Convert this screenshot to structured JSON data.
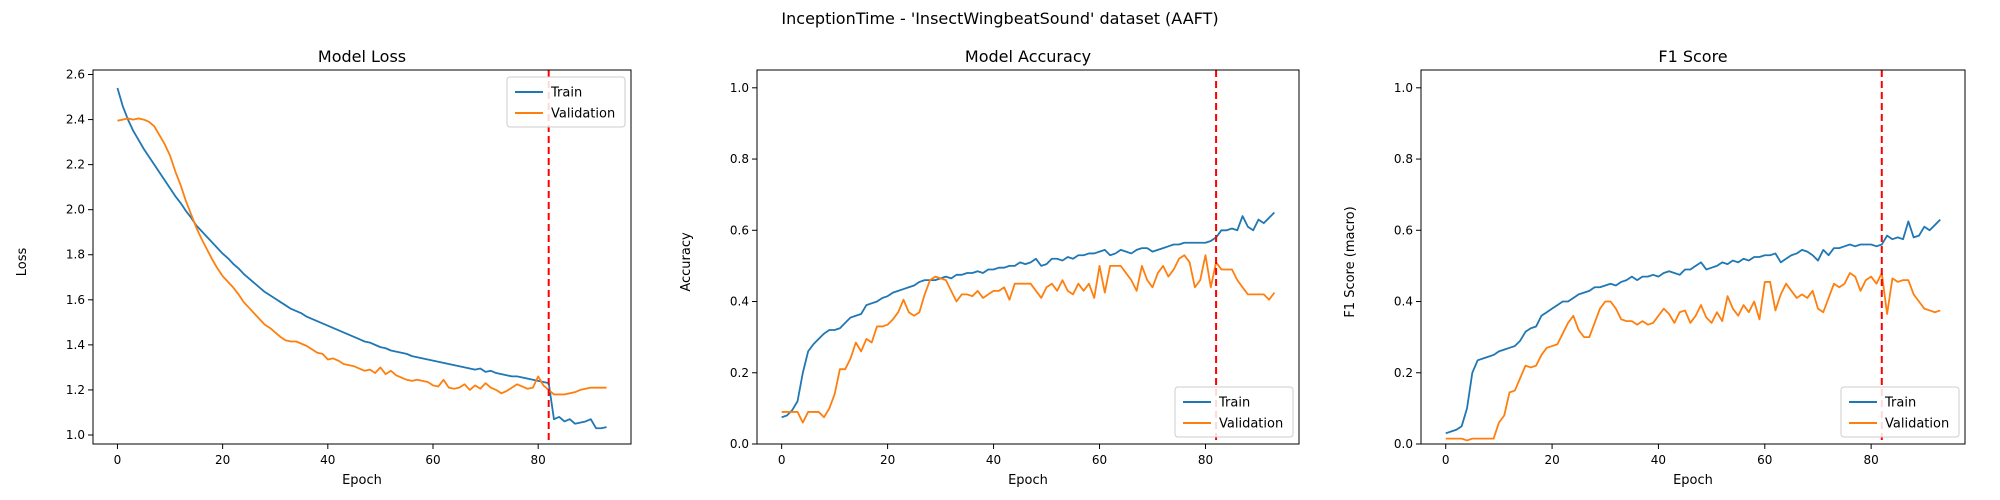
{
  "figure": {
    "suptitle": "InceptionTime - 'InsectWingbeatSound' dataset (AAFT)"
  },
  "colors": {
    "train": "#1f77b4",
    "validation": "#ff7f0e",
    "marker": "#ff0000"
  },
  "chart_data": [
    {
      "type": "line",
      "title": "Model Loss",
      "xlabel": "Epoch",
      "ylabel": "Loss",
      "xlim": [
        -4.65,
        97.65
      ],
      "ylim": [
        0.96,
        2.62
      ],
      "xticks": [
        0,
        20,
        40,
        60,
        80
      ],
      "xtick_labels": [
        "0",
        "20",
        "40",
        "60",
        "80"
      ],
      "yticks": [
        1.0,
        1.2,
        1.4,
        1.6,
        1.8,
        2.0,
        2.2,
        2.4,
        2.6
      ],
      "ytick_labels": [
        "1.0",
        "1.2",
        "1.4",
        "1.6",
        "1.8",
        "2.0",
        "2.2",
        "2.4",
        "2.6"
      ],
      "legend": "upper right",
      "vline": 82,
      "grid": false,
      "series": [
        {
          "name": "Train",
          "color": "#1f77b4",
          "y": [
            2.54,
            2.46,
            2.4,
            2.35,
            2.31,
            2.27,
            2.235,
            2.2,
            2.165,
            2.13,
            2.095,
            2.06,
            2.03,
            1.995,
            1.965,
            1.93,
            1.905,
            1.88,
            1.855,
            1.83,
            1.805,
            1.785,
            1.76,
            1.74,
            1.715,
            1.695,
            1.675,
            1.655,
            1.635,
            1.62,
            1.605,
            1.59,
            1.575,
            1.56,
            1.55,
            1.54,
            1.525,
            1.515,
            1.505,
            1.495,
            1.485,
            1.475,
            1.465,
            1.455,
            1.445,
            1.435,
            1.425,
            1.415,
            1.41,
            1.4,
            1.39,
            1.385,
            1.375,
            1.37,
            1.365,
            1.36,
            1.35,
            1.345,
            1.34,
            1.335,
            1.33,
            1.325,
            1.32,
            1.315,
            1.31,
            1.305,
            1.3,
            1.295,
            1.29,
            1.295,
            1.28,
            1.285,
            1.275,
            1.27,
            1.265,
            1.26,
            1.26,
            1.255,
            1.25,
            1.245,
            1.24,
            1.235,
            1.23,
            1.07,
            1.08,
            1.06,
            1.07,
            1.05,
            1.055,
            1.06,
            1.07,
            1.03,
            1.03,
            1.035
          ]
        },
        {
          "name": "Validation",
          "color": "#ff7f0e",
          "y": [
            2.395,
            2.4,
            2.405,
            2.4,
            2.405,
            2.4,
            2.39,
            2.37,
            2.33,
            2.29,
            2.24,
            2.17,
            2.11,
            2.04,
            1.98,
            1.92,
            1.87,
            1.825,
            1.78,
            1.74,
            1.705,
            1.68,
            1.655,
            1.625,
            1.59,
            1.565,
            1.54,
            1.515,
            1.49,
            1.475,
            1.455,
            1.435,
            1.42,
            1.415,
            1.415,
            1.405,
            1.395,
            1.38,
            1.365,
            1.36,
            1.335,
            1.34,
            1.33,
            1.315,
            1.31,
            1.305,
            1.295,
            1.285,
            1.29,
            1.275,
            1.3,
            1.27,
            1.285,
            1.265,
            1.255,
            1.245,
            1.24,
            1.245,
            1.24,
            1.235,
            1.22,
            1.215,
            1.245,
            1.21,
            1.205,
            1.21,
            1.225,
            1.2,
            1.22,
            1.205,
            1.23,
            1.21,
            1.2,
            1.185,
            1.195,
            1.21,
            1.225,
            1.215,
            1.205,
            1.21,
            1.26,
            1.22,
            1.2,
            1.18,
            1.18,
            1.18,
            1.185,
            1.19,
            1.2,
            1.205,
            1.21,
            1.21,
            1.21,
            1.21
          ]
        }
      ]
    },
    {
      "type": "line",
      "title": "Model Accuracy",
      "xlabel": "Epoch",
      "ylabel": "Accuracy",
      "xlim": [
        -4.65,
        97.65
      ],
      "ylim": [
        0.0,
        1.05
      ],
      "xticks": [
        0,
        20,
        40,
        60,
        80
      ],
      "xtick_labels": [
        "0",
        "20",
        "40",
        "60",
        "80"
      ],
      "yticks": [
        0.0,
        0.2,
        0.4,
        0.6,
        0.8,
        1.0
      ],
      "ytick_labels": [
        "0.0",
        "0.2",
        "0.4",
        "0.6",
        "0.8",
        "1.0"
      ],
      "legend": "lower right",
      "vline": 82,
      "grid": false,
      "series": [
        {
          "name": "Train",
          "color": "#1f77b4",
          "y": [
            0.075,
            0.08,
            0.095,
            0.12,
            0.2,
            0.26,
            0.28,
            0.295,
            0.31,
            0.32,
            0.32,
            0.325,
            0.34,
            0.355,
            0.36,
            0.365,
            0.39,
            0.395,
            0.4,
            0.41,
            0.415,
            0.425,
            0.43,
            0.435,
            0.44,
            0.445,
            0.455,
            0.46,
            0.46,
            0.46,
            0.465,
            0.47,
            0.465,
            0.475,
            0.475,
            0.48,
            0.48,
            0.485,
            0.48,
            0.49,
            0.49,
            0.495,
            0.495,
            0.5,
            0.5,
            0.51,
            0.505,
            0.51,
            0.52,
            0.5,
            0.505,
            0.52,
            0.52,
            0.515,
            0.525,
            0.52,
            0.53,
            0.53,
            0.535,
            0.535,
            0.54,
            0.545,
            0.53,
            0.535,
            0.545,
            0.54,
            0.535,
            0.545,
            0.55,
            0.55,
            0.54,
            0.545,
            0.55,
            0.555,
            0.56,
            0.56,
            0.565,
            0.565,
            0.565,
            0.565,
            0.565,
            0.57,
            0.58,
            0.6,
            0.6,
            0.605,
            0.6,
            0.64,
            0.61,
            0.6,
            0.63,
            0.62,
            0.635,
            0.65
          ]
        },
        {
          "name": "Validation",
          "color": "#ff7f0e",
          "y": [
            0.09,
            0.09,
            0.09,
            0.09,
            0.06,
            0.09,
            0.09,
            0.09,
            0.075,
            0.1,
            0.14,
            0.21,
            0.21,
            0.24,
            0.285,
            0.26,
            0.295,
            0.285,
            0.33,
            0.33,
            0.335,
            0.35,
            0.37,
            0.405,
            0.37,
            0.36,
            0.37,
            0.42,
            0.46,
            0.47,
            0.465,
            0.46,
            0.43,
            0.4,
            0.42,
            0.42,
            0.415,
            0.43,
            0.41,
            0.42,
            0.43,
            0.43,
            0.44,
            0.405,
            0.45,
            0.45,
            0.45,
            0.45,
            0.43,
            0.41,
            0.44,
            0.45,
            0.43,
            0.46,
            0.43,
            0.42,
            0.45,
            0.43,
            0.45,
            0.41,
            0.5,
            0.425,
            0.5,
            0.5,
            0.5,
            0.48,
            0.46,
            0.43,
            0.5,
            0.46,
            0.44,
            0.48,
            0.5,
            0.47,
            0.49,
            0.52,
            0.53,
            0.51,
            0.44,
            0.46,
            0.53,
            0.44,
            0.51,
            0.49,
            0.49,
            0.49,
            0.46,
            0.44,
            0.42,
            0.42,
            0.42,
            0.42,
            0.405,
            0.425
          ]
        }
      ]
    },
    {
      "type": "line",
      "title": "F1 Score",
      "xlabel": "Epoch",
      "ylabel": "F1 Score (macro)",
      "xlim": [
        -4.65,
        97.65
      ],
      "ylim": [
        0.0,
        1.05
      ],
      "xticks": [
        0,
        20,
        40,
        60,
        80
      ],
      "xtick_labels": [
        "0",
        "20",
        "40",
        "60",
        "80"
      ],
      "yticks": [
        0.0,
        0.2,
        0.4,
        0.6,
        0.8,
        1.0
      ],
      "ytick_labels": [
        "0.0",
        "0.2",
        "0.4",
        "0.6",
        "0.8",
        "1.0"
      ],
      "legend": "lower right",
      "vline": 82,
      "grid": false,
      "series": [
        {
          "name": "Train",
          "color": "#1f77b4",
          "y": [
            0.03,
            0.035,
            0.04,
            0.05,
            0.1,
            0.2,
            0.235,
            0.24,
            0.245,
            0.25,
            0.26,
            0.265,
            0.27,
            0.275,
            0.29,
            0.315,
            0.325,
            0.33,
            0.36,
            0.37,
            0.38,
            0.39,
            0.4,
            0.4,
            0.41,
            0.42,
            0.425,
            0.43,
            0.44,
            0.44,
            0.445,
            0.45,
            0.445,
            0.455,
            0.46,
            0.47,
            0.46,
            0.47,
            0.47,
            0.475,
            0.47,
            0.48,
            0.485,
            0.48,
            0.475,
            0.49,
            0.49,
            0.5,
            0.51,
            0.49,
            0.495,
            0.5,
            0.51,
            0.505,
            0.515,
            0.51,
            0.52,
            0.515,
            0.525,
            0.525,
            0.53,
            0.53,
            0.535,
            0.51,
            0.52,
            0.53,
            0.535,
            0.545,
            0.54,
            0.53,
            0.515,
            0.545,
            0.53,
            0.55,
            0.55,
            0.555,
            0.56,
            0.555,
            0.56,
            0.56,
            0.56,
            0.555,
            0.56,
            0.585,
            0.575,
            0.58,
            0.575,
            0.625,
            0.58,
            0.585,
            0.61,
            0.6,
            0.615,
            0.63
          ]
        },
        {
          "name": "Validation",
          "color": "#ff7f0e",
          "y": [
            0.015,
            0.015,
            0.015,
            0.015,
            0.01,
            0.015,
            0.015,
            0.015,
            0.015,
            0.015,
            0.06,
            0.08,
            0.145,
            0.15,
            0.185,
            0.22,
            0.215,
            0.22,
            0.25,
            0.27,
            0.275,
            0.28,
            0.31,
            0.34,
            0.36,
            0.32,
            0.3,
            0.3,
            0.34,
            0.38,
            0.4,
            0.4,
            0.38,
            0.35,
            0.345,
            0.345,
            0.335,
            0.345,
            0.335,
            0.34,
            0.36,
            0.38,
            0.365,
            0.34,
            0.37,
            0.375,
            0.34,
            0.36,
            0.39,
            0.355,
            0.34,
            0.37,
            0.345,
            0.415,
            0.38,
            0.36,
            0.39,
            0.37,
            0.4,
            0.35,
            0.455,
            0.455,
            0.375,
            0.42,
            0.45,
            0.43,
            0.41,
            0.42,
            0.41,
            0.43,
            0.38,
            0.37,
            0.41,
            0.45,
            0.44,
            0.45,
            0.48,
            0.47,
            0.43,
            0.46,
            0.47,
            0.45,
            0.48,
            0.365,
            0.465,
            0.455,
            0.46,
            0.46,
            0.42,
            0.4,
            0.38,
            0.375,
            0.37,
            0.375
          ]
        }
      ]
    }
  ]
}
